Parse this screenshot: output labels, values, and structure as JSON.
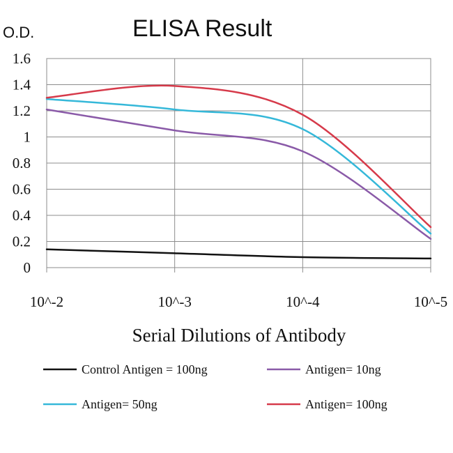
{
  "chart_data": {
    "type": "line",
    "title": "ELISA Result",
    "ylabel": "O.D.",
    "xlabel": "Serial Dilutions of Antibody",
    "categories": [
      "10^-2",
      "10^-3",
      "10^-4",
      "10^-5"
    ],
    "ylim": [
      0,
      1.6
    ],
    "yticks": [
      "0",
      "0.2",
      "0.4",
      "0.6",
      "0.8",
      "1",
      "1.2",
      "1.4",
      "1.6"
    ],
    "grid": true,
    "legend_position": "bottom",
    "series": [
      {
        "name": "Control Antigen = 100ng",
        "color": "#111111",
        "values": [
          0.14,
          0.11,
          0.08,
          0.07
        ]
      },
      {
        "name": "Antigen= 10ng",
        "color": "#8a5aa8",
        "values": [
          1.21,
          1.05,
          0.89,
          0.22
        ]
      },
      {
        "name": "Antigen= 50ng",
        "color": "#35b8d9",
        "values": [
          1.29,
          1.21,
          1.06,
          0.26
        ]
      },
      {
        "name": "Antigen= 100ng",
        "color": "#d63a4a",
        "values": [
          1.3,
          1.39,
          1.17,
          0.31
        ]
      }
    ]
  }
}
